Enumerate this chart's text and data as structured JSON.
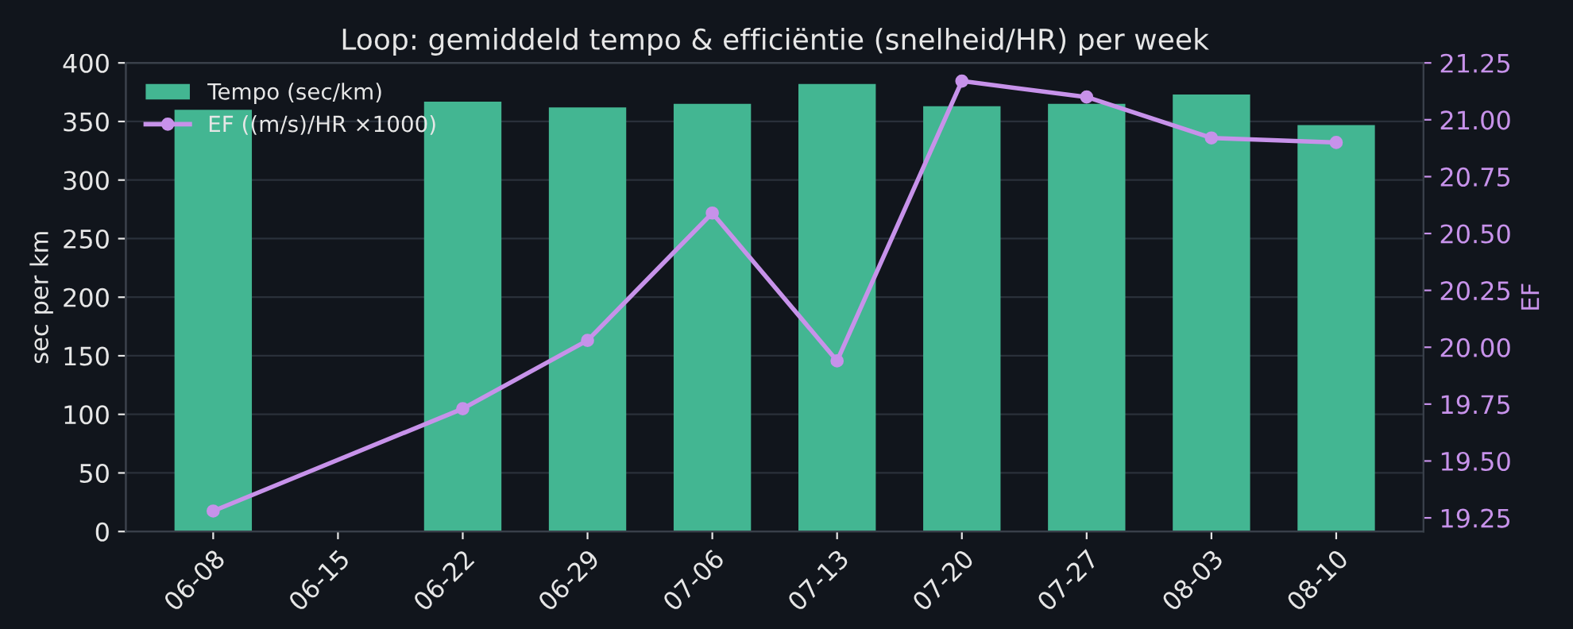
{
  "chart_data": {
    "type": "bar",
    "title": "Loop: gemiddeld tempo & efficiëntie (snelheid/HR) per week",
    "ylabel": "sec per km",
    "y2label": "EF",
    "categories": [
      "06-08",
      "06-15",
      "06-22",
      "06-29",
      "07-06",
      "07-13",
      "07-20",
      "07-27",
      "08-03",
      "08-10"
    ],
    "series": [
      {
        "name": "Tempo (sec/km)",
        "color": "#43b692",
        "values": [
          360,
          null,
          367,
          362,
          365,
          382,
          363,
          365,
          373,
          347
        ]
      },
      {
        "name": "EF ((m/s)/HR ×1000)",
        "type": "line",
        "axis": "y2",
        "color": "#c792ea",
        "marker": "circle",
        "values": [
          19.28,
          null,
          19.73,
          20.03,
          20.59,
          19.94,
          21.17,
          21.1,
          20.92,
          20.9
        ]
      }
    ],
    "ylim": [
      0,
      400
    ],
    "yticks": [
      0,
      50,
      100,
      150,
      200,
      250,
      300,
      350,
      400
    ],
    "y2lim": [
      19.19,
      21.25
    ],
    "y2ticks": [
      19.25,
      {
        "value": 19.5,
        "label": "19.50"
      },
      19.75,
      {
        "value": 20.0,
        "label": "20.00"
      },
      20.25,
      {
        "value": 20.5,
        "label": "20.50"
      },
      20.75,
      {
        "value": 21.0,
        "label": "21.00"
      },
      21.25
    ],
    "grid": "y",
    "legend": "top left"
  }
}
